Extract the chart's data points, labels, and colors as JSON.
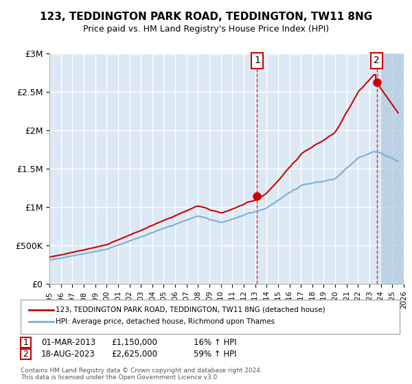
{
  "title": "123, TEDDINGTON PARK ROAD, TEDDINGTON, TW11 8NG",
  "subtitle": "Price paid vs. HM Land Registry's House Price Index (HPI)",
  "legend_line1": "123, TEDDINGTON PARK ROAD, TEDDINGTON, TW11 8NG (detached house)",
  "legend_line2": "HPI: Average price, detached house, Richmond upon Thames",
  "annotation1_label": "1",
  "annotation1_date": "01-MAR-2013",
  "annotation1_price": 1150000,
  "annotation1_pct": "16% ↑ HPI",
  "annotation1_year": 2013.17,
  "annotation2_label": "2",
  "annotation2_date": "18-AUG-2023",
  "annotation2_price": 2625000,
  "annotation2_pct": "59% ↑ HPI",
  "annotation2_year": 2023.63,
  "footer1": "Contains HM Land Registry data © Crown copyright and database right 2024.",
  "footer2": "This data is licensed under the Open Government Licence v3.0.",
  "ylim": [
    0,
    3000000
  ],
  "xlim_start": 1995,
  "xlim_end": 2026,
  "background_color": "#dce9f5",
  "hatch_color": "#b0c8e0",
  "grid_color": "#ffffff",
  "red_line_color": "#cc0000",
  "blue_line_color": "#7aafd4",
  "yticks": [
    0,
    500000,
    1000000,
    1500000,
    2000000,
    2500000,
    3000000
  ],
  "ytick_labels": [
    "£0",
    "£500K",
    "£1M",
    "£1.5M",
    "£2M",
    "£2.5M",
    "£3M"
  ],
  "xticks": [
    1995,
    1996,
    1997,
    1998,
    1999,
    2000,
    2001,
    2002,
    2003,
    2004,
    2005,
    2006,
    2007,
    2008,
    2009,
    2010,
    2011,
    2012,
    2013,
    2014,
    2015,
    2016,
    2017,
    2018,
    2019,
    2020,
    2021,
    2022,
    2023,
    2024,
    2025,
    2026
  ]
}
